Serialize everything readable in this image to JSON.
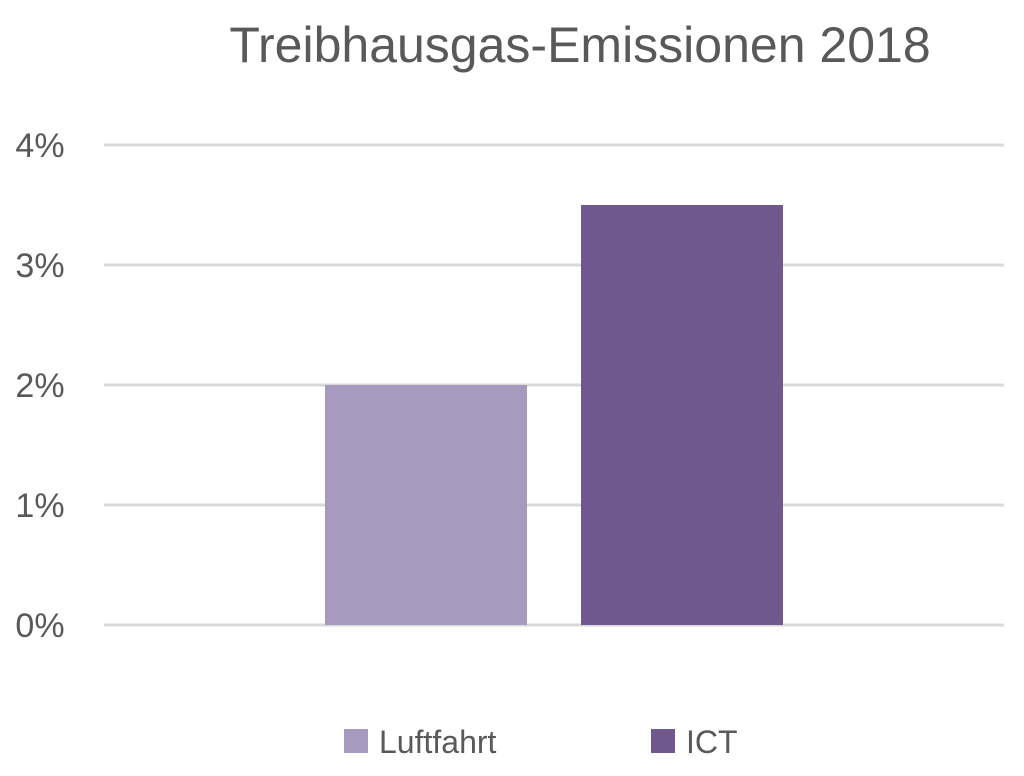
{
  "chart_data": {
    "type": "bar",
    "title": "Treibhausgas-Emissionen 2018",
    "xlabel": "",
    "ylabel": "",
    "ylim": [
      0,
      0.04
    ],
    "yticks": [
      {
        "value": 0.0,
        "label": "0%"
      },
      {
        "value": 0.01,
        "label": "1%"
      },
      {
        "value": 0.02,
        "label": "2%"
      },
      {
        "value": 0.03,
        "label": "3%"
      },
      {
        "value": 0.04,
        "label": "4%"
      }
    ],
    "grid": true,
    "legend_position": "bottom",
    "series": [
      {
        "name": "Luftfahrt",
        "value": 0.02,
        "color": "#a89abf"
      },
      {
        "name": "ICT",
        "value": 0.035,
        "color": "#6f588e"
      }
    ]
  }
}
